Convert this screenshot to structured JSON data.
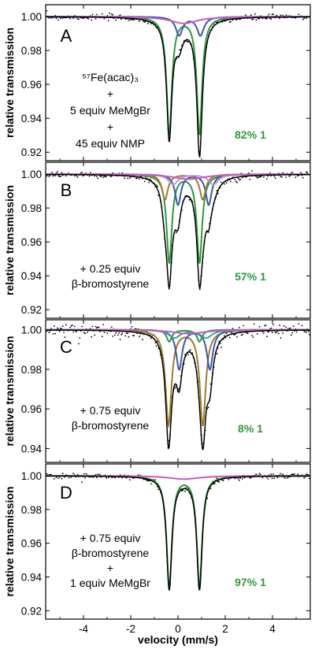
{
  "figure": {
    "ylabel": "relative transmission",
    "xlabel": "velocity (mm/s)",
    "x_ticks": [
      -4,
      -2,
      0,
      2,
      4
    ]
  },
  "colors": {
    "data": "#000000",
    "fit": "#000000",
    "green": "#2e9a3c",
    "blue": "#3b55b6",
    "pink": "#cc59c4",
    "olive": "#9b7d2c",
    "teal": "#3aa39a",
    "lavender": "#b49ad8"
  },
  "chart_data": [
    {
      "type": "scatter",
      "panel": "A",
      "xlim": [
        -5.6,
        5.6
      ],
      "ylim": [
        0.915,
        1.007
      ],
      "y_ticks": [
        "1.00",
        "0.98",
        "0.96",
        "0.94",
        "0.92"
      ],
      "annotation": [
        "⁵⁷Fe(acac)₃",
        "+",
        "5 equiv MeMgBr",
        "+",
        "45 equiv NMP"
      ],
      "percent_label": "82%",
      "percent_species": "1",
      "fit_components": [
        {
          "color": "green",
          "peaks": [
            {
              "center": -0.37,
              "depth": 0.069,
              "width": 0.27
            },
            {
              "center": 0.91,
              "depth": 0.069,
              "width": 0.27
            }
          ]
        },
        {
          "color": "blue",
          "peaks": [
            {
              "center": 0.05,
              "depth": 0.011,
              "width": 0.35
            },
            {
              "center": 0.95,
              "depth": 0.011,
              "width": 0.35
            }
          ]
        },
        {
          "color": "pink",
          "peaks": [
            {
              "center": 0.25,
              "depth": 0.004,
              "width": 1.4
            }
          ]
        }
      ],
      "data_minima": [
        {
          "x": -0.37,
          "y": 0.929
        },
        {
          "x": 0.91,
          "y": 0.929
        }
      ]
    },
    {
      "type": "scatter",
      "panel": "B",
      "xlim": [
        -5.6,
        5.6
      ],
      "ylim": [
        0.915,
        1.007
      ],
      "y_ticks": [
        "1.00",
        "0.98",
        "0.96",
        "0.94",
        "0.92"
      ],
      "annotation": [
        "+ 0.25 equiv",
        "β-bromostyrene"
      ],
      "percent_label": "57%",
      "percent_species": "1",
      "fit_components": [
        {
          "color": "green",
          "peaks": [
            {
              "center": -0.37,
              "depth": 0.052,
              "width": 0.27
            },
            {
              "center": 0.91,
              "depth": 0.052,
              "width": 0.27
            }
          ]
        },
        {
          "color": "blue",
          "peaks": [
            {
              "center": 0.0,
              "depth": 0.018,
              "width": 0.3
            },
            {
              "center": 1.3,
              "depth": 0.018,
              "width": 0.3
            }
          ]
        },
        {
          "color": "olive",
          "peaks": [
            {
              "center": -0.55,
              "depth": 0.015,
              "width": 0.3
            },
            {
              "center": 1.05,
              "depth": 0.015,
              "width": 0.3
            }
          ]
        },
        {
          "color": "lavender",
          "peaks": [
            {
              "center": -0.2,
              "depth": 0.006,
              "width": 0.5
            },
            {
              "center": 1.5,
              "depth": 0.006,
              "width": 0.5
            }
          ]
        },
        {
          "color": "pink",
          "peaks": [
            {
              "center": 0.45,
              "depth": 0.003,
              "width": 1.6
            }
          ]
        }
      ],
      "data_minima": [
        {
          "x": -0.37,
          "y": 0.922
        },
        {
          "x": 0.91,
          "y": 0.924
        }
      ]
    },
    {
      "type": "scatter",
      "panel": "C",
      "xlim": [
        -5.6,
        5.6
      ],
      "ylim": [
        0.933,
        1.005
      ],
      "y_ticks": [
        "1.00",
        "0.98",
        "0.96",
        "0.94"
      ],
      "annotation": [
        "+ 0.75 equiv",
        "β-bromostyrene"
      ],
      "percent_label": "8%",
      "percent_species": "1",
      "fit_components": [
        {
          "color": "olive",
          "peaks": [
            {
              "center": -0.4,
              "depth": 0.048,
              "width": 0.3
            },
            {
              "center": 1.05,
              "depth": 0.048,
              "width": 0.3
            }
          ]
        },
        {
          "color": "blue",
          "peaks": [
            {
              "center": 0.05,
              "depth": 0.02,
              "width": 0.3
            },
            {
              "center": 1.35,
              "depth": 0.02,
              "width": 0.3
            }
          ]
        },
        {
          "color": "green",
          "peaks": [
            {
              "center": -0.37,
              "depth": 0.006,
              "width": 0.27
            },
            {
              "center": 0.91,
              "depth": 0.006,
              "width": 0.27
            }
          ]
        },
        {
          "color": "teal",
          "peaks": [
            {
              "center": -0.15,
              "depth": 0.004,
              "width": 0.6
            },
            {
              "center": 1.2,
              "depth": 0.004,
              "width": 0.6
            }
          ]
        },
        {
          "color": "pink",
          "peaks": [
            {
              "center": 0.45,
              "depth": 0.002,
              "width": 1.6
            }
          ]
        }
      ],
      "data_minima": [
        {
          "x": -0.4,
          "y": 0.936
        },
        {
          "x": 1.05,
          "y": 0.936
        }
      ]
    },
    {
      "type": "scatter",
      "panel": "D",
      "xlim": [
        -5.6,
        5.6
      ],
      "ylim": [
        0.915,
        1.007
      ],
      "y_ticks": [
        "1.00",
        "0.98",
        "0.96",
        "0.94",
        "0.92"
      ],
      "annotation": [
        "+ 0.75 equiv",
        "β-bromostyrene",
        "+",
        "1 equiv MeMgBr"
      ],
      "percent_label": "97%",
      "percent_species": "1",
      "fit_components": [
        {
          "color": "green",
          "peaks": [
            {
              "center": -0.37,
              "depth": 0.066,
              "width": 0.27
            },
            {
              "center": 0.91,
              "depth": 0.066,
              "width": 0.27
            }
          ]
        },
        {
          "color": "pink",
          "peaks": [
            {
              "center": 0.25,
              "depth": 0.002,
              "width": 1.6
            }
          ]
        }
      ],
      "data_minima": [
        {
          "x": -0.37,
          "y": 0.931
        },
        {
          "x": 0.91,
          "y": 0.932
        }
      ]
    }
  ]
}
